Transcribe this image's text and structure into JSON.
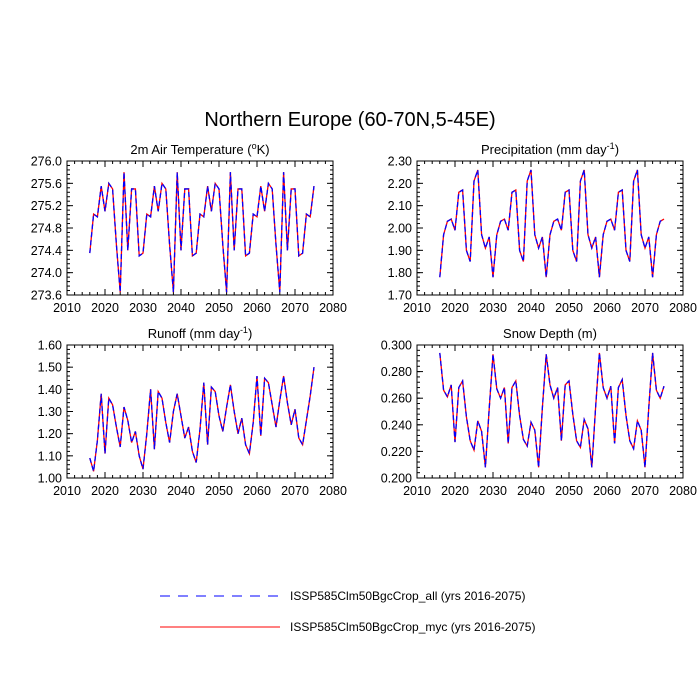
{
  "title": "Northern Europe (60-70N,5-45E)",
  "chart_data": [
    {
      "type": "line",
      "title": "2m Air Temperature (",
      "title_unit": "o",
      "title_tail": "K)",
      "x": [
        2016,
        2017,
        2018,
        2019,
        2020,
        2021,
        2022,
        2023,
        2024,
        2025,
        2026,
        2027,
        2028,
        2029,
        2030,
        2031,
        2032,
        2033,
        2034,
        2035,
        2036,
        2037,
        2038,
        2039,
        2040,
        2041,
        2042,
        2043,
        2044,
        2045,
        2046,
        2047,
        2048,
        2049,
        2050,
        2051,
        2052,
        2053,
        2054,
        2055,
        2056,
        2057,
        2058,
        2059,
        2060,
        2061,
        2062,
        2063,
        2064,
        2065,
        2066,
        2067,
        2068,
        2069,
        2070,
        2071,
        2072,
        2073,
        2074,
        2075
      ],
      "xlim": [
        2010,
        2080
      ],
      "xticks": [
        2010,
        2020,
        2030,
        2040,
        2050,
        2060,
        2070,
        2080
      ],
      "ylim": [
        273.6,
        276.0
      ],
      "yticks": [
        273.6,
        274.0,
        274.4,
        274.8,
        275.2,
        275.6,
        276.0
      ],
      "ytick_labels": [
        "273.6",
        "274.0",
        "274.4",
        "274.8",
        "275.2",
        "275.6",
        "276.0"
      ],
      "series": [
        {
          "name": "ISSP585Clm50BgcCrop_all (yrs 2016-2075)",
          "color": "#0000ff",
          "style": "dashed",
          "values": [
            274.35,
            275.05,
            275.0,
            275.55,
            275.1,
            275.6,
            275.5,
            274.5,
            273.65,
            275.8,
            274.4,
            275.5,
            275.5,
            274.3,
            274.35,
            275.05,
            275.0,
            275.55,
            275.1,
            275.6,
            275.5,
            274.5,
            273.65,
            275.8,
            274.4,
            275.5,
            275.5,
            274.3,
            274.35,
            275.05,
            275.0,
            275.55,
            275.1,
            275.6,
            275.5,
            274.5,
            273.65,
            275.8,
            274.4,
            275.5,
            275.5,
            274.3,
            274.35,
            275.05,
            275.0,
            275.55,
            275.1,
            275.6,
            275.5,
            274.5,
            273.65,
            275.8,
            274.4,
            275.5,
            275.5,
            274.3,
            274.35,
            275.05,
            275.0,
            275.55
          ]
        },
        {
          "name": "ISSP585Clm50BgcCrop_myc (yrs 2016-2075)",
          "color": "#ff0000",
          "style": "solid",
          "values": [
            274.35,
            275.05,
            275.0,
            275.55,
            275.1,
            275.6,
            275.5,
            274.5,
            273.65,
            275.8,
            274.4,
            275.5,
            275.5,
            274.3,
            274.35,
            275.05,
            275.0,
            275.55,
            275.1,
            275.6,
            275.5,
            274.5,
            273.65,
            275.8,
            274.4,
            275.5,
            275.5,
            274.3,
            274.35,
            275.05,
            275.0,
            275.55,
            275.1,
            275.6,
            275.5,
            274.5,
            273.65,
            275.8,
            274.4,
            275.5,
            275.5,
            274.3,
            274.35,
            275.05,
            275.0,
            275.55,
            275.1,
            275.6,
            275.5,
            274.5,
            273.65,
            275.8,
            274.4,
            275.5,
            275.5,
            274.3,
            274.35,
            275.05,
            275.0,
            275.55
          ]
        }
      ]
    },
    {
      "type": "line",
      "title": "Precipitation (mm day",
      "title_unit": "-1",
      "title_tail": ")",
      "x": [
        2016,
        2017,
        2018,
        2019,
        2020,
        2021,
        2022,
        2023,
        2024,
        2025,
        2026,
        2027,
        2028,
        2029,
        2030,
        2031,
        2032,
        2033,
        2034,
        2035,
        2036,
        2037,
        2038,
        2039,
        2040,
        2041,
        2042,
        2043,
        2044,
        2045,
        2046,
        2047,
        2048,
        2049,
        2050,
        2051,
        2052,
        2053,
        2054,
        2055,
        2056,
        2057,
        2058,
        2059,
        2060,
        2061,
        2062,
        2063,
        2064,
        2065,
        2066,
        2067,
        2068,
        2069,
        2070,
        2071,
        2072,
        2073,
        2074,
        2075
      ],
      "xlim": [
        2010,
        2080
      ],
      "xticks": [
        2010,
        2020,
        2030,
        2040,
        2050,
        2060,
        2070,
        2080
      ],
      "ylim": [
        1.7,
        2.3
      ],
      "yticks": [
        1.7,
        1.8,
        1.9,
        2.0,
        2.1,
        2.2,
        2.3
      ],
      "ytick_labels": [
        "1.70",
        "1.80",
        "1.90",
        "2.00",
        "2.10",
        "2.20",
        "2.30"
      ],
      "series": [
        {
          "name": "ISSP585Clm50BgcCrop_all (yrs 2016-2075)",
          "color": "#0000ff",
          "style": "dashed",
          "values": [
            1.78,
            1.97,
            2.03,
            2.04,
            1.99,
            2.16,
            2.17,
            1.9,
            1.85,
            2.21,
            2.26,
            1.97,
            1.91,
            1.96,
            1.78,
            1.97,
            2.03,
            2.04,
            1.99,
            2.16,
            2.17,
            1.9,
            1.85,
            2.21,
            2.26,
            1.97,
            1.91,
            1.96,
            1.78,
            1.97,
            2.03,
            2.04,
            1.99,
            2.16,
            2.17,
            1.9,
            1.85,
            2.21,
            2.26,
            1.97,
            1.91,
            1.96,
            1.78,
            1.97,
            2.03,
            2.04,
            1.99,
            2.16,
            2.17,
            1.9,
            1.85,
            2.21,
            2.26,
            1.97,
            1.91,
            1.96,
            1.78,
            1.97,
            2.03,
            2.04
          ]
        },
        {
          "name": "ISSP585Clm50BgcCrop_myc (yrs 2016-2075)",
          "color": "#ff0000",
          "style": "solid",
          "values": [
            1.78,
            1.97,
            2.03,
            2.04,
            1.99,
            2.16,
            2.17,
            1.9,
            1.85,
            2.21,
            2.26,
            1.97,
            1.91,
            1.96,
            1.78,
            1.97,
            2.03,
            2.04,
            1.99,
            2.16,
            2.17,
            1.9,
            1.85,
            2.21,
            2.26,
            1.97,
            1.91,
            1.96,
            1.78,
            1.97,
            2.03,
            2.04,
            1.99,
            2.16,
            2.17,
            1.9,
            1.85,
            2.21,
            2.26,
            1.97,
            1.91,
            1.96,
            1.78,
            1.97,
            2.03,
            2.04,
            1.99,
            2.16,
            2.17,
            1.9,
            1.85,
            2.21,
            2.26,
            1.97,
            1.91,
            1.96,
            1.78,
            1.97,
            2.03,
            2.04
          ]
        }
      ]
    },
    {
      "type": "line",
      "title": "Runoff (mm day",
      "title_unit": "-1",
      "title_tail": ")",
      "x": [
        2016,
        2017,
        2018,
        2019,
        2020,
        2021,
        2022,
        2023,
        2024,
        2025,
        2026,
        2027,
        2028,
        2029,
        2030,
        2031,
        2032,
        2033,
        2034,
        2035,
        2036,
        2037,
        2038,
        2039,
        2040,
        2041,
        2042,
        2043,
        2044,
        2045,
        2046,
        2047,
        2048,
        2049,
        2050,
        2051,
        2052,
        2053,
        2054,
        2055,
        2056,
        2057,
        2058,
        2059,
        2060,
        2061,
        2062,
        2063,
        2064,
        2065,
        2066,
        2067,
        2068,
        2069,
        2070,
        2071,
        2072,
        2073,
        2074,
        2075
      ],
      "xlim": [
        2010,
        2080
      ],
      "xticks": [
        2010,
        2020,
        2030,
        2040,
        2050,
        2060,
        2070,
        2080
      ],
      "ylim": [
        1.0,
        1.6
      ],
      "yticks": [
        1.0,
        1.1,
        1.2,
        1.3,
        1.4,
        1.5,
        1.6
      ],
      "ytick_labels": [
        "1.00",
        "1.10",
        "1.20",
        "1.30",
        "1.40",
        "1.50",
        "1.60"
      ],
      "series": [
        {
          "name": "ISSP585Clm50BgcCrop_all (yrs 2016-2075)",
          "color": "#0000ff",
          "style": "dashed",
          "values": [
            1.09,
            1.03,
            1.17,
            1.38,
            1.11,
            1.36,
            1.33,
            1.23,
            1.14,
            1.32,
            1.26,
            1.16,
            1.21,
            1.1,
            1.04,
            1.2,
            1.4,
            1.13,
            1.39,
            1.36,
            1.25,
            1.16,
            1.3,
            1.38,
            1.28,
            1.18,
            1.23,
            1.12,
            1.07,
            1.22,
            1.43,
            1.15,
            1.41,
            1.39,
            1.28,
            1.21,
            1.32,
            1.42,
            1.3,
            1.2,
            1.27,
            1.15,
            1.11,
            1.25,
            1.46,
            1.19,
            1.45,
            1.43,
            1.33,
            1.23,
            1.35,
            1.46,
            1.34,
            1.24,
            1.31,
            1.18,
            1.15,
            1.26,
            1.37,
            1.5
          ]
        },
        {
          "name": "ISSP585Clm50BgcCrop_myc (yrs 2016-2075)",
          "color": "#ff0000",
          "style": "solid",
          "values": [
            1.09,
            1.03,
            1.17,
            1.38,
            1.11,
            1.36,
            1.33,
            1.23,
            1.14,
            1.32,
            1.26,
            1.16,
            1.21,
            1.1,
            1.04,
            1.2,
            1.4,
            1.13,
            1.39,
            1.36,
            1.25,
            1.16,
            1.3,
            1.38,
            1.28,
            1.18,
            1.23,
            1.12,
            1.07,
            1.22,
            1.43,
            1.15,
            1.41,
            1.39,
            1.28,
            1.21,
            1.32,
            1.42,
            1.3,
            1.2,
            1.27,
            1.15,
            1.11,
            1.25,
            1.46,
            1.19,
            1.45,
            1.43,
            1.33,
            1.23,
            1.35,
            1.46,
            1.34,
            1.24,
            1.31,
            1.18,
            1.15,
            1.26,
            1.37,
            1.5
          ]
        }
      ]
    },
    {
      "type": "line",
      "title": "Snow Depth (m)",
      "title_unit": "",
      "title_tail": "",
      "x": [
        2016,
        2017,
        2018,
        2019,
        2020,
        2021,
        2022,
        2023,
        2024,
        2025,
        2026,
        2027,
        2028,
        2029,
        2030,
        2031,
        2032,
        2033,
        2034,
        2035,
        2036,
        2037,
        2038,
        2039,
        2040,
        2041,
        2042,
        2043,
        2044,
        2045,
        2046,
        2047,
        2048,
        2049,
        2050,
        2051,
        2052,
        2053,
        2054,
        2055,
        2056,
        2057,
        2058,
        2059,
        2060,
        2061,
        2062,
        2063,
        2064,
        2065,
        2066,
        2067,
        2068,
        2069,
        2070,
        2071,
        2072,
        2073,
        2074,
        2075
      ],
      "xlim": [
        2010,
        2080
      ],
      "xticks": [
        2010,
        2020,
        2030,
        2040,
        2050,
        2060,
        2070,
        2080
      ],
      "ylim": [
        0.2,
        0.3
      ],
      "yticks": [
        0.2,
        0.22,
        0.24,
        0.26,
        0.28,
        0.3
      ],
      "ytick_labels": [
        "0.200",
        "0.220",
        "0.240",
        "0.260",
        "0.280",
        "0.300"
      ],
      "series": [
        {
          "name": "ISSP585Clm50BgcCrop_all (yrs 2016-2075)",
          "color": "#0000ff",
          "style": "dashed",
          "values": [
            0.294,
            0.266,
            0.261,
            0.27,
            0.227,
            0.268,
            0.273,
            0.246,
            0.228,
            0.221,
            0.243,
            0.235,
            0.208,
            0.252,
            0.293,
            0.267,
            0.26,
            0.268,
            0.226,
            0.268,
            0.273,
            0.247,
            0.229,
            0.224,
            0.242,
            0.236,
            0.208,
            0.253,
            0.293,
            0.27,
            0.26,
            0.268,
            0.228,
            0.27,
            0.273,
            0.248,
            0.228,
            0.223,
            0.244,
            0.237,
            0.208,
            0.253,
            0.294,
            0.268,
            0.26,
            0.269,
            0.226,
            0.268,
            0.274,
            0.247,
            0.228,
            0.222,
            0.243,
            0.236,
            0.208,
            0.253,
            0.294,
            0.266,
            0.26,
            0.269
          ]
        },
        {
          "name": "ISSP585Clm50BgcCrop_myc (yrs 2016-2075)",
          "color": "#ff0000",
          "style": "solid",
          "values": [
            0.294,
            0.266,
            0.261,
            0.27,
            0.227,
            0.268,
            0.273,
            0.246,
            0.228,
            0.221,
            0.243,
            0.235,
            0.208,
            0.252,
            0.293,
            0.267,
            0.26,
            0.268,
            0.226,
            0.268,
            0.273,
            0.247,
            0.229,
            0.224,
            0.242,
            0.236,
            0.208,
            0.253,
            0.293,
            0.27,
            0.26,
            0.268,
            0.228,
            0.27,
            0.273,
            0.248,
            0.228,
            0.223,
            0.244,
            0.237,
            0.208,
            0.253,
            0.294,
            0.268,
            0.26,
            0.269,
            0.226,
            0.268,
            0.274,
            0.247,
            0.228,
            0.222,
            0.243,
            0.236,
            0.208,
            0.253,
            0.294,
            0.266,
            0.26,
            0.269
          ]
        }
      ]
    }
  ],
  "legend": {
    "items": [
      {
        "label": "ISSP585Clm50BgcCrop_all (yrs 2016-2075)",
        "color": "#0000ff",
        "style": "dashed"
      },
      {
        "label": "ISSP585Clm50BgcCrop_myc (yrs 2016-2075)",
        "color": "#ff0000",
        "style": "solid"
      }
    ]
  }
}
